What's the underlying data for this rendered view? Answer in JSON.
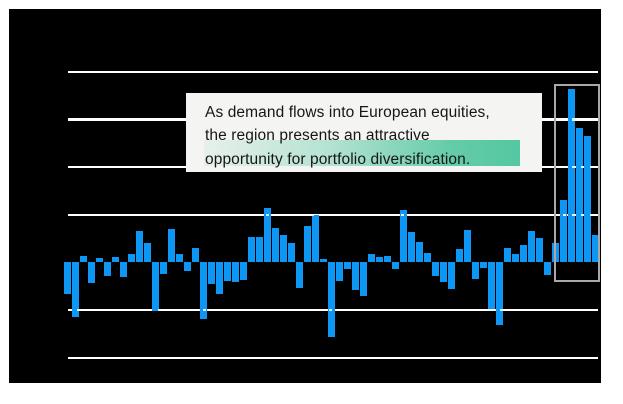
{
  "page": {
    "background": "#ffffff",
    "canvas_background": "#000000"
  },
  "chart_data": {
    "type": "bar",
    "title": "",
    "xlabel": "",
    "ylabel": "",
    "x_tick_labels_visible": false,
    "y_tick_labels_visible": false,
    "legend": "none",
    "grid": "horizontal white lines, 7 positions, zero-baseline line not drawn, lines render dotted where bars overlap",
    "gridline_spacing_px": 47.7,
    "values_unit": "pixels above(+)/below(-) the zero baseline; axis is unlabeled in the source image; one gridline gap = 47.7px",
    "values": [
      -32,
      -55,
      6,
      -21,
      4,
      -14,
      5,
      -15,
      8,
      31,
      19,
      -49,
      -12,
      33,
      8,
      -9,
      14,
      -57,
      -22,
      -32,
      -19,
      -20,
      -18,
      25,
      25,
      54,
      34,
      27,
      19,
      -26,
      36,
      47,
      3,
      -75,
      -19,
      -7,
      -28,
      -34,
      8,
      5,
      6,
      -7,
      52,
      30,
      20,
      9,
      -14,
      -20,
      -27,
      13,
      32,
      -17,
      -6,
      -47,
      -63,
      14,
      8,
      17,
      31,
      24,
      -13,
      19,
      62,
      173,
      134,
      126,
      27
    ],
    "bar_count": 67,
    "bar_color": "#0d96f3",
    "gridline_color": "#ffffff",
    "highlight_box": {
      "description": "gray rectangle framing the final rally of bars (last 6 bars)",
      "border_color": "#a9a9a9",
      "covers_bars_from_index": 61,
      "covers_bars_to_index": 66
    },
    "annotation": {
      "lines": [
        "As demand flows into European equities,",
        "the region presents an attractive",
        "opportunity for portfolio diversification."
      ],
      "highlighted_line_index": 2,
      "box_background": "#f4f4f2",
      "text_color": "#161616",
      "highlight_color": "#55c7a1"
    }
  }
}
